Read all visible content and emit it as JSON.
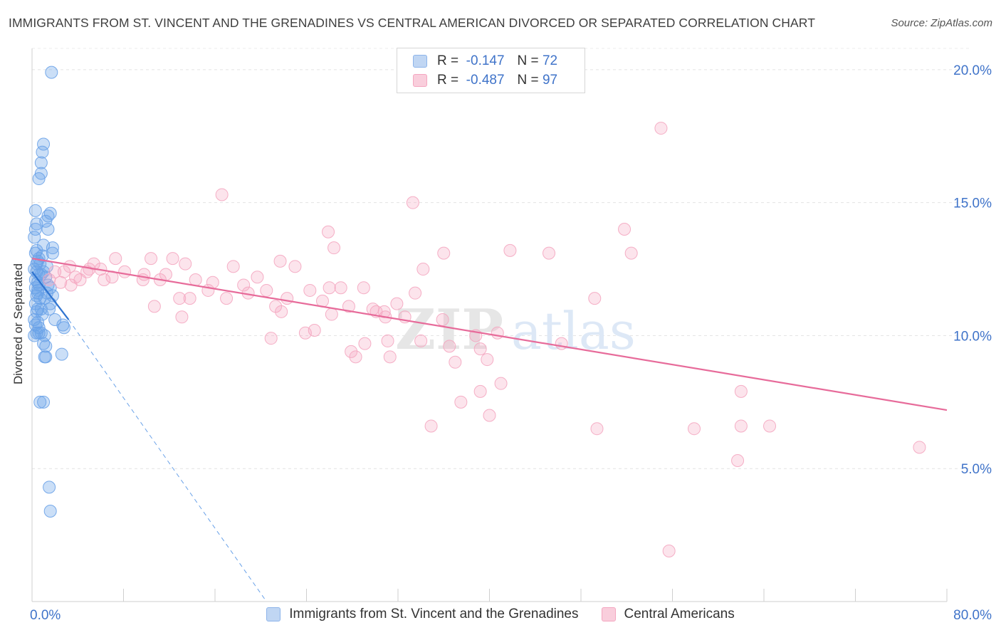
{
  "title": "IMMIGRANTS FROM ST. VINCENT AND THE GRENADINES VS CENTRAL AMERICAN DIVORCED OR SEPARATED CORRELATION CHART",
  "source": "Source: ZipAtlas.com",
  "watermark": {
    "zip": "ZIP",
    "atlas": "atlas"
  },
  "legend": {
    "rows": [
      {
        "r_label": "R =",
        "r_value": "-0.147",
        "n_label": "N =",
        "n_value": "72",
        "color": "#8db4ea"
      },
      {
        "r_label": "R =",
        "r_value": "-0.487",
        "n_label": "N =",
        "n_value": "97",
        "color": "#f4a6c0"
      }
    ]
  },
  "chart_data": {
    "type": "scatter",
    "title": "IMMIGRANTS FROM ST. VINCENT AND THE GRENADINES VS CENTRAL AMERICAN DIVORCED OR SEPARATED CORRELATION CHART",
    "xlabel": "",
    "ylabel": "Divorced or Separated",
    "xlim": [
      0,
      80
    ],
    "ylim": [
      0,
      20.8
    ],
    "x_tick_labels": [
      "0.0%",
      "80.0%"
    ],
    "y_ticks": [
      5,
      10,
      15,
      20
    ],
    "y_tick_labels": [
      "5.0%",
      "10.0%",
      "15.0%",
      "20.0%"
    ],
    "grid": true,
    "legend_position": "top-center",
    "series": [
      {
        "name": "Immigrants from St. Vincent and the Grenadines",
        "color": "#6aa2e8",
        "trend": {
          "x": [
            0,
            3.2
          ],
          "y": [
            12.4,
            10.6
          ]
        },
        "trend_extension": {
          "x": [
            3.2,
            20.5
          ],
          "y": [
            10.6,
            0
          ]
        },
        "points": [
          [
            1.7,
            19.9
          ],
          [
            1.0,
            17.2
          ],
          [
            0.9,
            16.9
          ],
          [
            0.8,
            16.5
          ],
          [
            0.8,
            16.1
          ],
          [
            0.6,
            15.9
          ],
          [
            0.3,
            14.7
          ],
          [
            1.6,
            14.6
          ],
          [
            1.4,
            14.5
          ],
          [
            1.2,
            14.3
          ],
          [
            0.4,
            14.2
          ],
          [
            0.3,
            14.0
          ],
          [
            1.4,
            14.0
          ],
          [
            0.2,
            13.7
          ],
          [
            1.0,
            13.4
          ],
          [
            0.4,
            13.2
          ],
          [
            1.8,
            13.3
          ],
          [
            1.8,
            13.1
          ],
          [
            0.3,
            13.1
          ],
          [
            0.6,
            12.9
          ],
          [
            0.5,
            12.8
          ],
          [
            0.4,
            12.7
          ],
          [
            0.2,
            12.5
          ],
          [
            0.4,
            12.4
          ],
          [
            0.6,
            12.3
          ],
          [
            0.8,
            12.3
          ],
          [
            0.3,
            12.1
          ],
          [
            0.5,
            12.0
          ],
          [
            0.6,
            11.9
          ],
          [
            1.4,
            11.9
          ],
          [
            0.3,
            11.8
          ],
          [
            1.6,
            11.8
          ],
          [
            0.5,
            11.6
          ],
          [
            1.3,
            11.6
          ],
          [
            0.4,
            11.5
          ],
          [
            0.7,
            11.4
          ],
          [
            1.1,
            11.4
          ],
          [
            0.3,
            11.2
          ],
          [
            1.6,
            11.2
          ],
          [
            0.5,
            11.0
          ],
          [
            0.8,
            11.0
          ],
          [
            0.4,
            10.9
          ],
          [
            0.2,
            10.6
          ],
          [
            0.5,
            10.5
          ],
          [
            0.3,
            10.4
          ],
          [
            0.6,
            10.3
          ],
          [
            2.7,
            10.4
          ],
          [
            2.8,
            10.3
          ],
          [
            0.4,
            10.1
          ],
          [
            0.6,
            10.1
          ],
          [
            0.8,
            10.1
          ],
          [
            1.1,
            10.0
          ],
          [
            0.2,
            10.0
          ],
          [
            1.0,
            9.7
          ],
          [
            1.2,
            9.6
          ],
          [
            2.6,
            9.3
          ],
          [
            1.1,
            9.2
          ],
          [
            1.2,
            9.2
          ],
          [
            0.7,
            7.5
          ],
          [
            1.0,
            7.5
          ],
          [
            1.5,
            4.3
          ],
          [
            1.6,
            3.4
          ],
          [
            0.9,
            13.0
          ],
          [
            1.2,
            12.2
          ],
          [
            1.5,
            11.0
          ],
          [
            2.0,
            10.6
          ],
          [
            0.7,
            12.7
          ],
          [
            1.0,
            12.4
          ],
          [
            0.5,
            11.7
          ],
          [
            1.3,
            12.6
          ],
          [
            0.9,
            10.8
          ],
          [
            1.8,
            11.5
          ]
        ]
      },
      {
        "name": "Central Americans",
        "color": "#f4a6c0",
        "trend": {
          "x": [
            0,
            80
          ],
          "y": [
            12.9,
            7.2
          ]
        },
        "points": [
          [
            55.0,
            17.8
          ],
          [
            16.6,
            15.3
          ],
          [
            33.3,
            15.0
          ],
          [
            51.8,
            14.0
          ],
          [
            25.9,
            13.9
          ],
          [
            26.4,
            13.3
          ],
          [
            41.8,
            13.2
          ],
          [
            52.4,
            13.1
          ],
          [
            45.2,
            13.1
          ],
          [
            36.0,
            13.1
          ],
          [
            7.3,
            12.9
          ],
          [
            10.4,
            12.9
          ],
          [
            12.3,
            12.9
          ],
          [
            21.7,
            12.8
          ],
          [
            5.4,
            12.7
          ],
          [
            13.4,
            12.7
          ],
          [
            3.3,
            12.6
          ],
          [
            17.6,
            12.6
          ],
          [
            23.0,
            12.6
          ],
          [
            34.2,
            12.5
          ],
          [
            6.0,
            12.5
          ],
          [
            2.0,
            12.4
          ],
          [
            2.8,
            12.4
          ],
          [
            4.8,
            12.4
          ],
          [
            8.1,
            12.4
          ],
          [
            9.8,
            12.3
          ],
          [
            11.7,
            12.3
          ],
          [
            3.8,
            12.2
          ],
          [
            19.7,
            12.2
          ],
          [
            7.0,
            12.2
          ],
          [
            4.2,
            12.1
          ],
          [
            9.7,
            12.1
          ],
          [
            11.2,
            12.1
          ],
          [
            6.3,
            12.1
          ],
          [
            14.3,
            12.1
          ],
          [
            1.5,
            12.1
          ],
          [
            2.5,
            12.0
          ],
          [
            18.5,
            11.9
          ],
          [
            15.4,
            11.7
          ],
          [
            20.5,
            11.7
          ],
          [
            24.3,
            11.7
          ],
          [
            27.0,
            11.8
          ],
          [
            26.0,
            11.8
          ],
          [
            18.9,
            11.6
          ],
          [
            33.5,
            11.6
          ],
          [
            29.0,
            11.8
          ],
          [
            17.0,
            11.4
          ],
          [
            22.3,
            11.4
          ],
          [
            13.8,
            11.4
          ],
          [
            25.4,
            11.3
          ],
          [
            12.9,
            11.4
          ],
          [
            49.2,
            11.4
          ],
          [
            21.3,
            11.1
          ],
          [
            27.7,
            11.1
          ],
          [
            29.8,
            11.0
          ],
          [
            31.9,
            11.2
          ],
          [
            10.7,
            11.1
          ],
          [
            30.8,
            10.9
          ],
          [
            21.8,
            10.9
          ],
          [
            26.2,
            10.8
          ],
          [
            30.9,
            10.7
          ],
          [
            32.6,
            10.7
          ],
          [
            13.1,
            10.7
          ],
          [
            30.1,
            10.9
          ],
          [
            35.9,
            10.6
          ],
          [
            24.7,
            10.2
          ],
          [
            23.9,
            10.1
          ],
          [
            40.7,
            10.1
          ],
          [
            38.8,
            10.0
          ],
          [
            20.9,
            9.9
          ],
          [
            31.1,
            9.8
          ],
          [
            29.1,
            9.7
          ],
          [
            34.0,
            9.8
          ],
          [
            36.5,
            9.6
          ],
          [
            39.2,
            9.5
          ],
          [
            46.3,
            9.7
          ],
          [
            27.9,
            9.4
          ],
          [
            28.3,
            9.2
          ],
          [
            31.3,
            9.2
          ],
          [
            39.8,
            9.1
          ],
          [
            37.0,
            9.0
          ],
          [
            41.0,
            8.2
          ],
          [
            39.2,
            7.9
          ],
          [
            37.5,
            7.5
          ],
          [
            62.0,
            7.9
          ],
          [
            40.0,
            7.0
          ],
          [
            34.9,
            6.6
          ],
          [
            49.4,
            6.5
          ],
          [
            62.0,
            6.6
          ],
          [
            64.5,
            6.6
          ],
          [
            57.9,
            6.5
          ],
          [
            77.6,
            5.8
          ],
          [
            61.7,
            5.3
          ],
          [
            55.7,
            1.9
          ],
          [
            5.0,
            12.5
          ],
          [
            3.4,
            11.9
          ],
          [
            15.8,
            12.0
          ]
        ]
      }
    ]
  },
  "bottom_legend": [
    {
      "label": "Immigrants from St. Vincent and the Grenadines",
      "color": "#8db4ea"
    },
    {
      "label": "Central Americans",
      "color": "#f4a6c0"
    }
  ]
}
